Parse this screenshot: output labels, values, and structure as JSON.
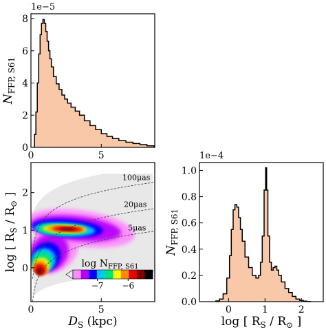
{
  "chart_data": [
    {
      "id": "top",
      "type": "histogram",
      "ylabel_main": "N",
      "ylabel_sub": "FFP, S61",
      "multiplier": "1e−5",
      "xlim": [
        0,
        8.8
      ],
      "ylim": [
        0,
        8.3
      ],
      "xticks": [
        0,
        5
      ],
      "xtick_labels": [
        "0",
        "5"
      ],
      "yticks": [
        0,
        2,
        4,
        6,
        8
      ],
      "ytick_labels": [
        "0",
        "2",
        "4",
        "6",
        "8"
      ],
      "x": [
        0.3,
        0.4,
        0.5,
        0.6,
        0.7,
        0.8,
        0.9,
        1.0,
        1.1,
        1.2,
        1.3,
        1.4,
        1.5,
        1.7,
        1.9,
        2.1,
        2.3,
        2.5,
        2.7,
        3.0,
        3.3,
        3.6,
        4.0,
        4.4,
        4.8,
        5.2,
        5.6,
        6.0,
        6.5,
        7.0,
        7.5,
        8.0,
        8.5
      ],
      "values": [
        0.8,
        2.2,
        4.0,
        5.8,
        7.0,
        7.7,
        7.95,
        7.7,
        7.2,
        6.6,
        6.0,
        5.5,
        5.0,
        4.4,
        3.95,
        3.6,
        3.25,
        3.0,
        2.75,
        2.5,
        2.25,
        2.0,
        1.65,
        1.35,
        1.1,
        0.85,
        0.68,
        0.55,
        0.42,
        0.32,
        0.24,
        0.17,
        0.1
      ]
    },
    {
      "id": "heatmap",
      "type": "heatmap",
      "xlabel_main": "D",
      "xlabel_sub": "S",
      "xlabel_unit": "(kpc)",
      "ylabel": "log [ R",
      "ylabel_sub": "S",
      "ylabel_tail": "/ R",
      "ylabel_odot": "⊙",
      "ylabel_close": "]",
      "xlim": [
        0,
        8.8
      ],
      "ylim": [
        -0.9,
        2.8
      ],
      "xticks": [
        0,
        5
      ],
      "xtick_labels": [
        "0",
        "5"
      ],
      "yticks": [
        0,
        1,
        2
      ],
      "ytick_labels": [
        "0",
        "1",
        "2"
      ],
      "curves": [
        {
          "label": "100μas",
          "log_offset": 1.33
        },
        {
          "label": "20μas",
          "log_offset": 0.63
        },
        {
          "label": "5μas",
          "log_offset": 0.03
        }
      ],
      "colorbar": {
        "title_main": "log N",
        "title_sub": "FFP, S61",
        "ticks": [
          -7,
          -6
        ],
        "tick_labels": [
          "−7",
          "−6"
        ],
        "range": [
          -7.8,
          -5.2
        ],
        "colors": [
          "#e8e8e8",
          "#ff8cff",
          "#b800ff",
          "#0000ff",
          "#00c8ff",
          "#00e676",
          "#ffff00",
          "#ff8c00",
          "#e60000",
          "#800000",
          "#000000"
        ]
      }
    },
    {
      "id": "right",
      "type": "histogram",
      "ylabel_main": "N",
      "ylabel_sub": "FFP, S61",
      "multiplier": "1e−4",
      "xlabel": "log [ R",
      "xlabel_sub": "S",
      "xlabel_tail": "/ R",
      "xlabel_odot": "⊙",
      "xlabel_close": "]",
      "xlim": [
        -0.8,
        2.6
      ],
      "ylim": [
        0,
        1.06
      ],
      "xticks": [
        0,
        1,
        2
      ],
      "xtick_labels": [
        "0",
        "1",
        "2"
      ],
      "yticks": [
        0,
        0.2,
        0.4,
        0.6,
        0.8,
        1.0
      ],
      "ytick_labels": [
        "0.0",
        "0.2",
        "0.4",
        "0.6",
        "0.8",
        "1.0"
      ],
      "x": [
        -0.3,
        -0.2,
        -0.1,
        0.0,
        0.05,
        0.1,
        0.15,
        0.2,
        0.25,
        0.3,
        0.35,
        0.4,
        0.5,
        0.6,
        0.7,
        0.8,
        0.85,
        0.9,
        0.95,
        1.0,
        1.03,
        1.06,
        1.1,
        1.15,
        1.2,
        1.25,
        1.3,
        1.35,
        1.4,
        1.5,
        1.6,
        1.7,
        1.8,
        1.9,
        2.0,
        2.1,
        2.2
      ],
      "values": [
        0.005,
        0.02,
        0.06,
        0.18,
        0.35,
        0.55,
        0.7,
        0.74,
        0.72,
        0.64,
        0.55,
        0.46,
        0.34,
        0.26,
        0.2,
        0.18,
        0.2,
        0.3,
        0.5,
        0.85,
        1.02,
        0.85,
        0.5,
        0.3,
        0.24,
        0.26,
        0.27,
        0.24,
        0.2,
        0.15,
        0.1,
        0.07,
        0.04,
        0.02,
        0.01,
        0.004,
        0.001
      ]
    }
  ]
}
